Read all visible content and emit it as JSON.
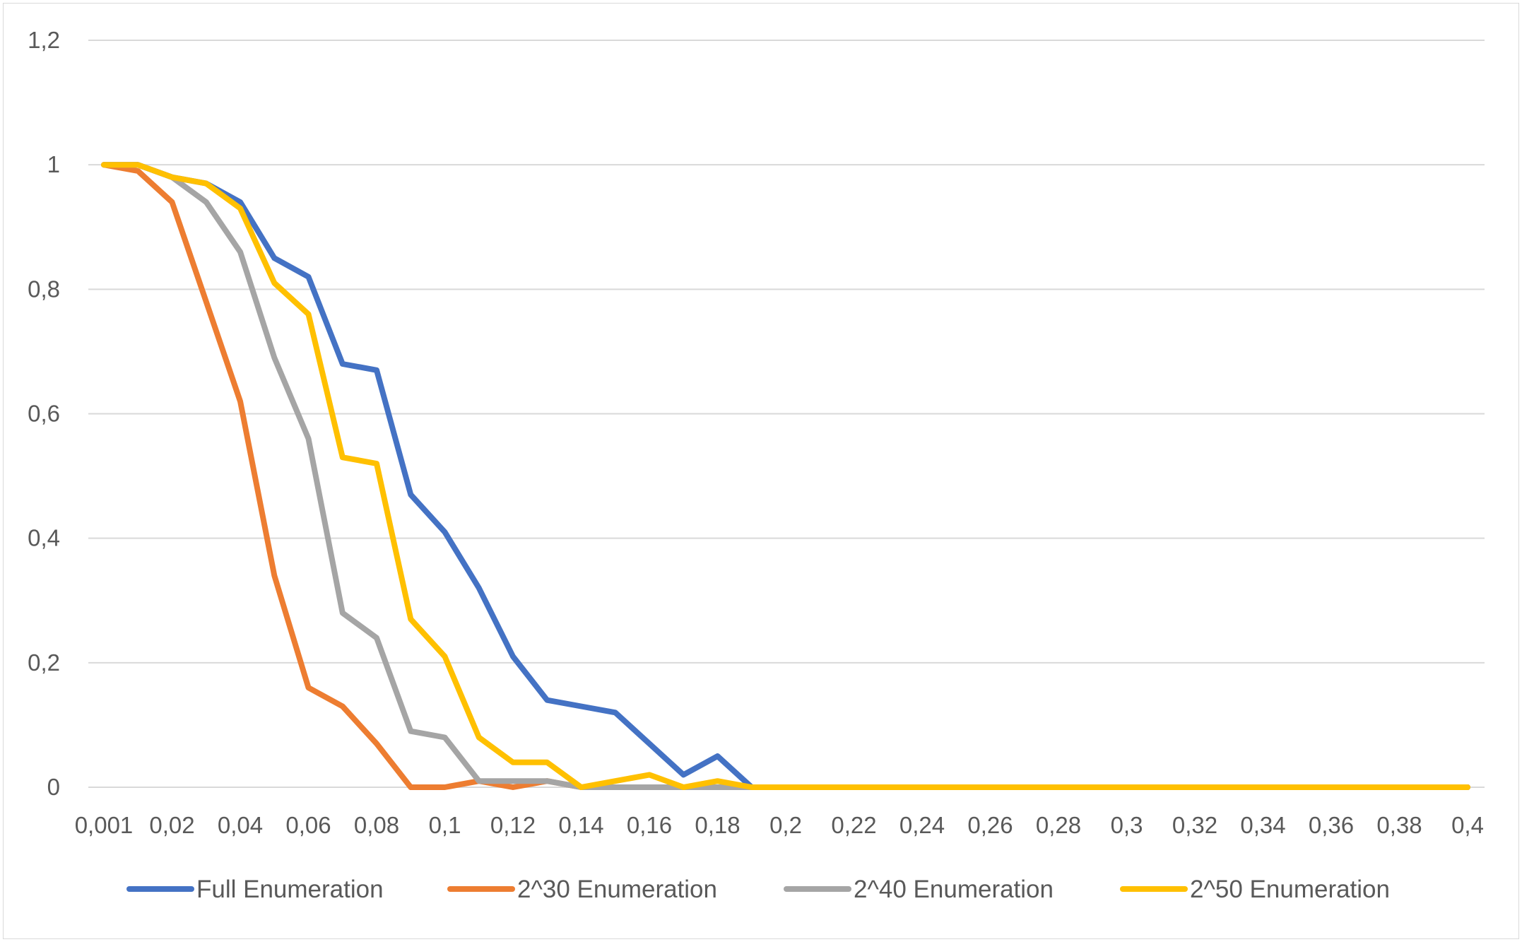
{
  "chart_data": {
    "type": "line",
    "x": [
      "0,001",
      "0,01",
      "0,02",
      "0,03",
      "0,04",
      "0,05",
      "0,06",
      "0,07",
      "0,08",
      "0,09",
      "0,1",
      "0,11",
      "0,12",
      "0,13",
      "0,14",
      "0,15",
      "0,16",
      "0,17",
      "0,18",
      "0,19",
      "0,2",
      "0,21",
      "0,22",
      "0,23",
      "0,24",
      "0,25",
      "0,26",
      "0,27",
      "0,28",
      "0,29",
      "0,3",
      "0,31",
      "0,32",
      "0,33",
      "0,34",
      "0,35",
      "0,36",
      "0,37",
      "0,38",
      "0,39",
      "0,4"
    ],
    "x_tick_labels": [
      "0,001",
      "0,02",
      "0,04",
      "0,06",
      "0,08",
      "0,1",
      "0,12",
      "0,14",
      "0,16",
      "0,18",
      "0,2",
      "0,22",
      "0,24",
      "0,26",
      "0,28",
      "0,3",
      "0,32",
      "0,34",
      "0,36",
      "0,38",
      "0,4"
    ],
    "y_tick_labels": [
      "0",
      "0,2",
      "0,4",
      "0,6",
      "0,8",
      "1",
      "1,2"
    ],
    "ylim": [
      0,
      1.2
    ],
    "grid": true,
    "legend_position": "bottom",
    "series": [
      {
        "name": "Full Enumeration",
        "color": "#4472C4",
        "values": [
          1,
          1,
          0.98,
          0.97,
          0.94,
          0.85,
          0.82,
          0.68,
          0.67,
          0.47,
          0.41,
          0.32,
          0.21,
          0.14,
          0.13,
          0.12,
          0.07,
          0.02,
          0.05,
          0,
          0,
          0,
          0,
          0,
          0,
          0,
          0,
          0,
          0,
          0,
          0,
          0,
          0,
          0,
          0,
          0,
          0,
          0,
          0,
          0,
          0
        ]
      },
      {
        "name": "2^30 Enumeration",
        "color": "#ED7D31",
        "values": [
          1,
          0.99,
          0.94,
          0.78,
          0.62,
          0.34,
          0.16,
          0.13,
          0.07,
          0,
          0,
          0.01,
          0,
          0.01,
          0,
          0,
          0,
          0,
          0,
          0,
          0,
          0,
          0,
          0,
          0,
          0,
          0,
          0,
          0,
          0,
          0,
          0,
          0,
          0,
          0,
          0,
          0,
          0,
          0,
          0,
          0
        ]
      },
      {
        "name": "2^40 Enumeration",
        "color": "#A5A5A5",
        "values": [
          1,
          1,
          0.98,
          0.94,
          0.86,
          0.69,
          0.56,
          0.28,
          0.24,
          0.09,
          0.08,
          0.01,
          0.01,
          0.01,
          0,
          0,
          0,
          0,
          0,
          0,
          0,
          0,
          0,
          0,
          0,
          0,
          0,
          0,
          0,
          0,
          0,
          0,
          0,
          0,
          0,
          0,
          0,
          0,
          0,
          0,
          0
        ]
      },
      {
        "name": "2^50 Enumeration",
        "color": "#FFC000",
        "values": [
          1,
          1,
          0.98,
          0.97,
          0.93,
          0.81,
          0.76,
          0.53,
          0.52,
          0.27,
          0.21,
          0.08,
          0.04,
          0.04,
          0,
          0.01,
          0.02,
          0,
          0.01,
          0,
          0,
          0,
          0,
          0,
          0,
          0,
          0,
          0,
          0,
          0,
          0,
          0,
          0,
          0,
          0,
          0,
          0,
          0,
          0,
          0,
          0
        ]
      }
    ]
  }
}
